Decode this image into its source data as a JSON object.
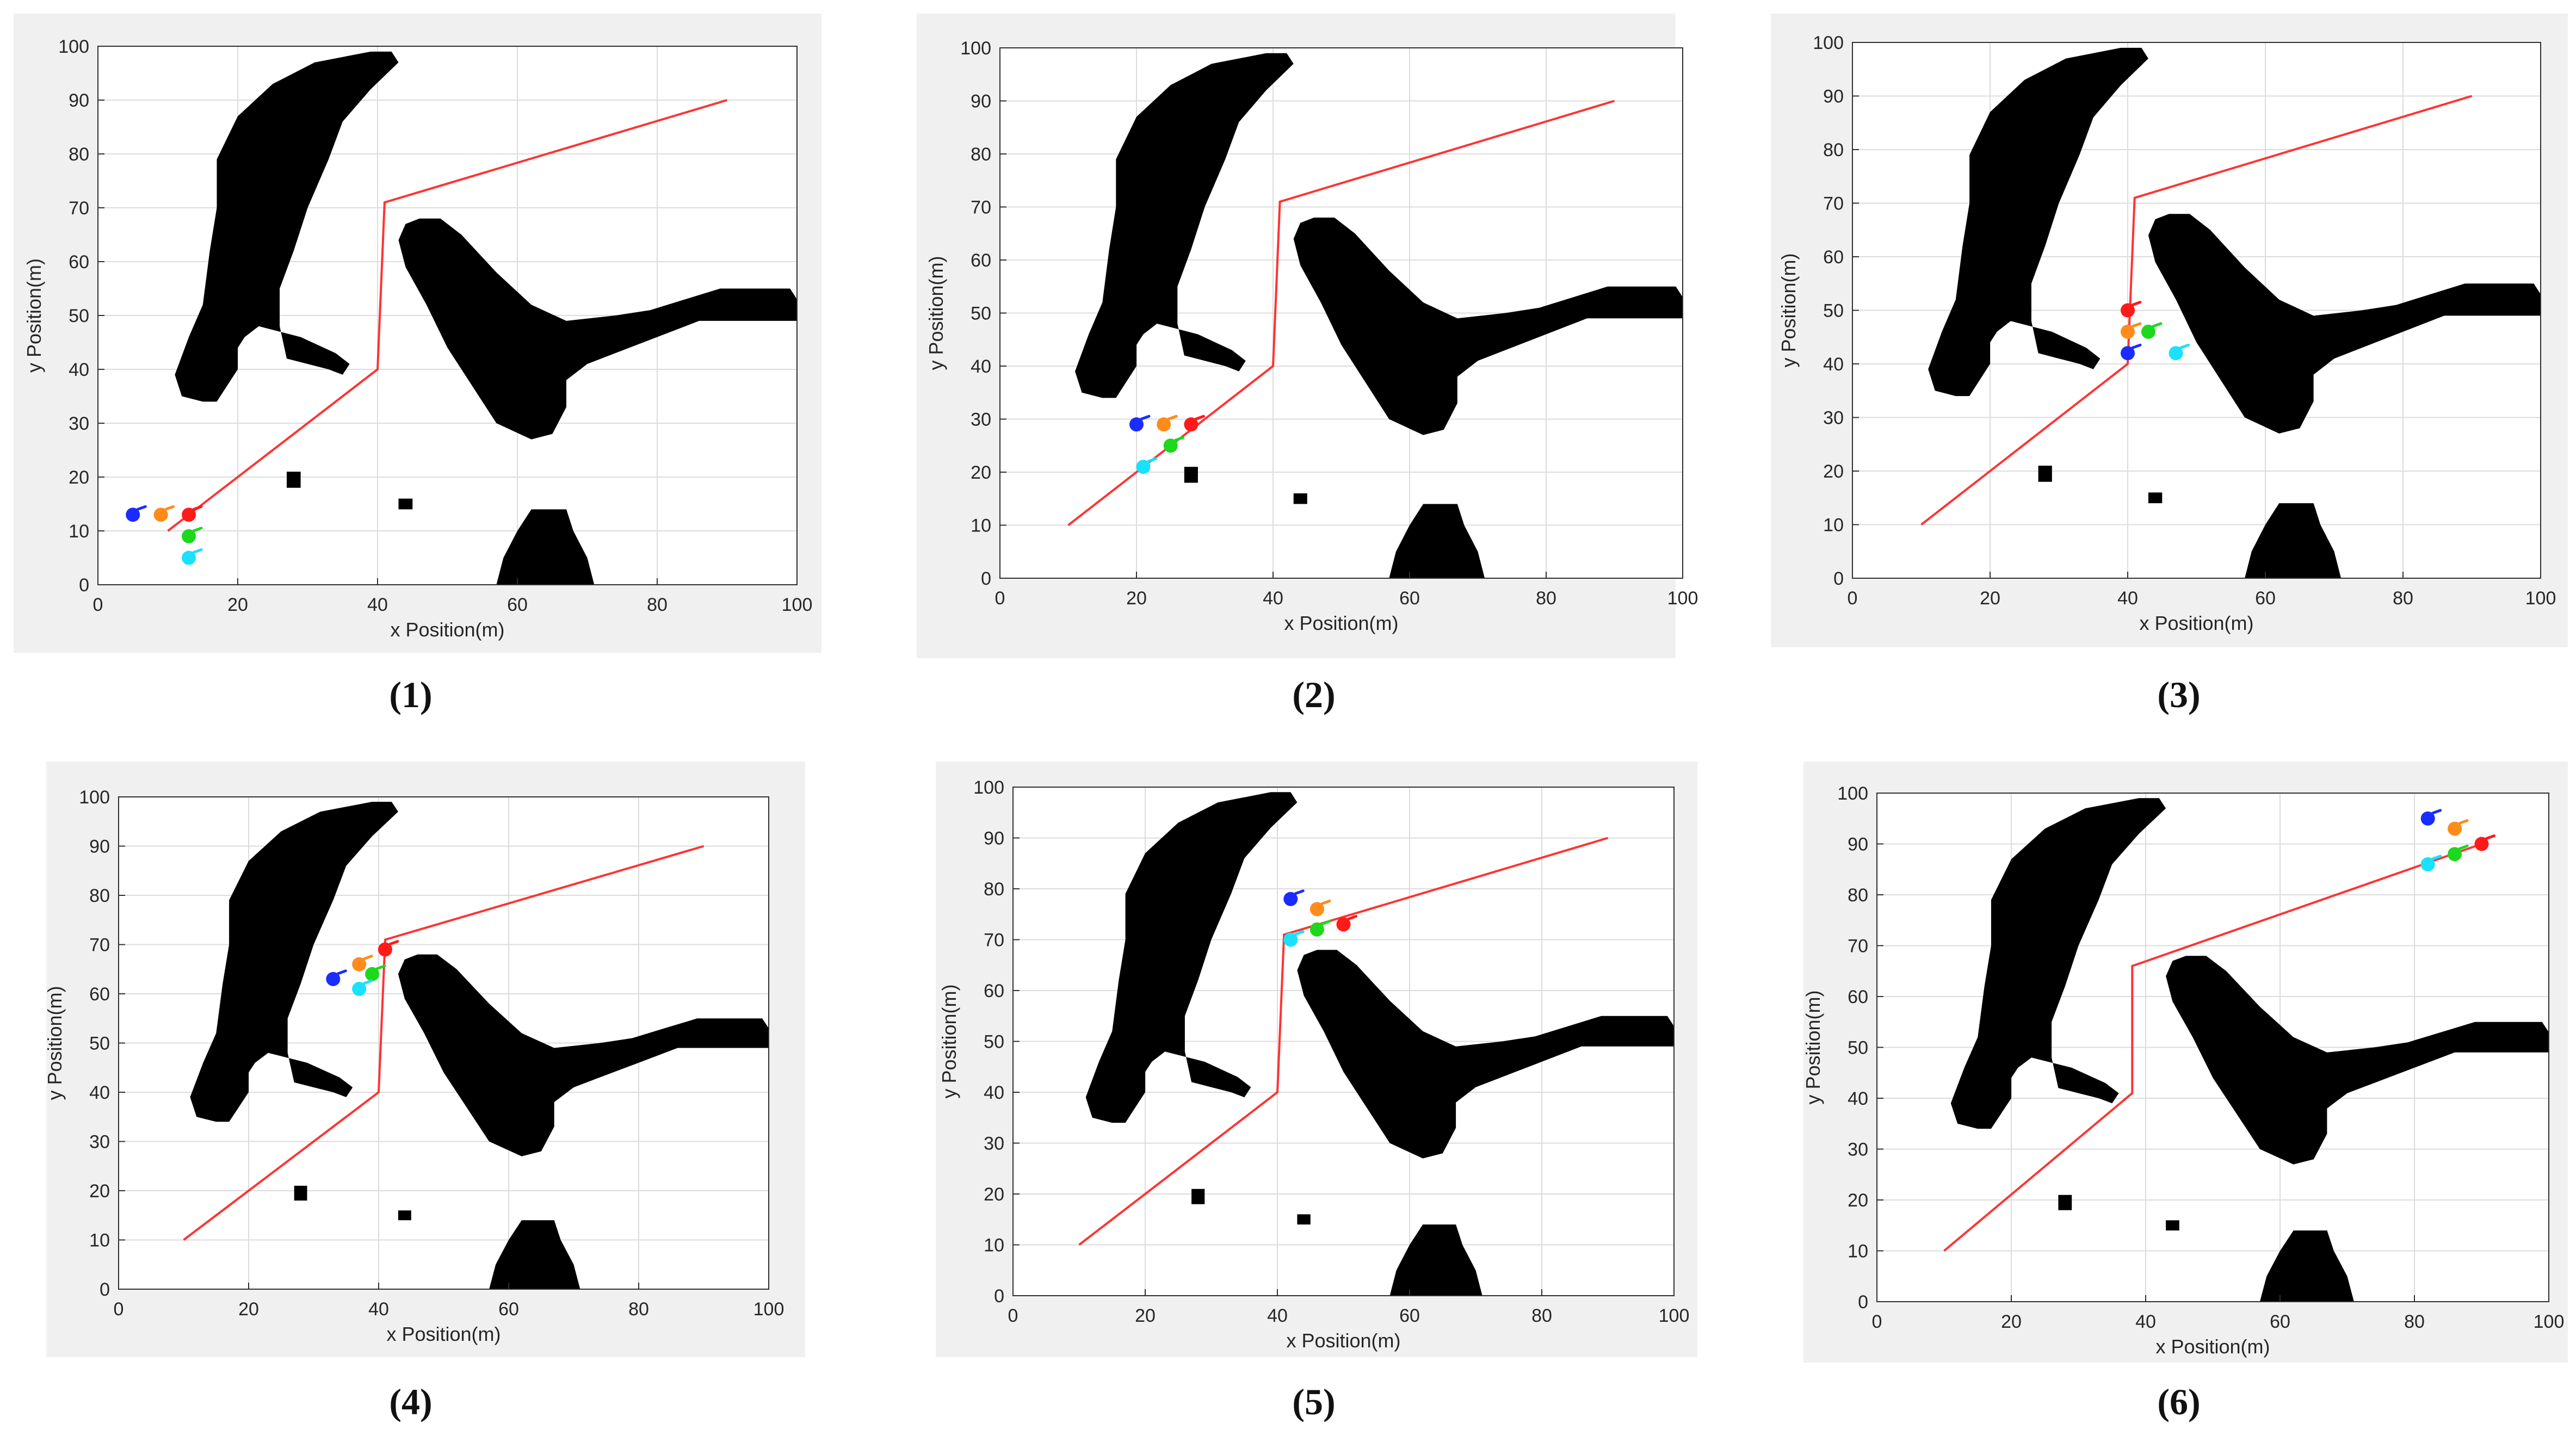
{
  "figure": {
    "colors": {
      "panel_bg": "#f0f0f0",
      "plot_bg": "#ffffff",
      "grid": "#dcdcdc",
      "axis": "#303030",
      "text": "#262626",
      "path": "#ff3333",
      "obstacle": "#000000",
      "robot_blue": "#1a2cff",
      "robot_orange": "#ff8c1a",
      "robot_red": "#ff1a1a",
      "robot_green": "#1ed81e",
      "robot_cyan": "#19e1ff"
    },
    "panel_labels": [
      "(1)",
      "(2)",
      "(3)",
      "(4)",
      "(5)",
      "(6)"
    ]
  },
  "chart_data": [
    {
      "type": "scatter",
      "title": "",
      "xlabel": "x Position(m)",
      "ylabel": "y Position(m)",
      "xlim": [
        0,
        100
      ],
      "ylim": [
        0,
        100
      ],
      "xticks": [
        0,
        20,
        40,
        60,
        80,
        100
      ],
      "yticks": [
        0,
        10,
        20,
        30,
        40,
        50,
        60,
        70,
        80,
        90,
        100
      ],
      "grid": true,
      "path": {
        "x": [
          10,
          40,
          41,
          90
        ],
        "y": [
          10,
          40,
          71,
          90
        ]
      },
      "robots": [
        {
          "color": "blue",
          "x": 5,
          "y": 13
        },
        {
          "color": "orange",
          "x": 9,
          "y": 13
        },
        {
          "color": "red",
          "x": 13,
          "y": 13
        },
        {
          "color": "green",
          "x": 13,
          "y": 9
        },
        {
          "color": "cyan",
          "x": 13,
          "y": 5
        }
      ]
    },
    {
      "type": "scatter",
      "title": "",
      "xlabel": "x Position(m)",
      "ylabel": "y Position(m)",
      "xlim": [
        0,
        100
      ],
      "ylim": [
        0,
        100
      ],
      "xticks": [
        0,
        20,
        40,
        60,
        80,
        100
      ],
      "yticks": [
        0,
        10,
        20,
        30,
        40,
        50,
        60,
        70,
        80,
        90,
        100
      ],
      "grid": true,
      "path": {
        "x": [
          10,
          40,
          41,
          90
        ],
        "y": [
          10,
          40,
          71,
          90
        ]
      },
      "robots": [
        {
          "color": "blue",
          "x": 20,
          "y": 29
        },
        {
          "color": "orange",
          "x": 24,
          "y": 29
        },
        {
          "color": "red",
          "x": 28,
          "y": 29
        },
        {
          "color": "green",
          "x": 25,
          "y": 25
        },
        {
          "color": "cyan",
          "x": 21,
          "y": 21
        }
      ]
    },
    {
      "type": "scatter",
      "title": "",
      "xlabel": "x Position(m)",
      "ylabel": "y Position(m)",
      "xlim": [
        0,
        100
      ],
      "ylim": [
        0,
        100
      ],
      "xticks": [
        0,
        20,
        40,
        60,
        80,
        100
      ],
      "yticks": [
        0,
        10,
        20,
        30,
        40,
        50,
        60,
        70,
        80,
        90,
        100
      ],
      "grid": true,
      "path": {
        "x": [
          10,
          40,
          41,
          90
        ],
        "y": [
          10,
          40,
          71,
          90
        ]
      },
      "robots": [
        {
          "color": "blue",
          "x": 40,
          "y": 42
        },
        {
          "color": "orange",
          "x": 40,
          "y": 46
        },
        {
          "color": "red",
          "x": 40,
          "y": 50
        },
        {
          "color": "green",
          "x": 43,
          "y": 46
        },
        {
          "color": "cyan",
          "x": 47,
          "y": 42
        }
      ]
    },
    {
      "type": "scatter",
      "title": "",
      "xlabel": "x Position(m)",
      "ylabel": "y Position(m)",
      "xlim": [
        0,
        100
      ],
      "ylim": [
        0,
        100
      ],
      "xticks": [
        0,
        20,
        40,
        60,
        80,
        100
      ],
      "yticks": [
        0,
        10,
        20,
        30,
        40,
        50,
        60,
        70,
        80,
        90,
        100
      ],
      "grid": true,
      "path": {
        "x": [
          10,
          40,
          41,
          90
        ],
        "y": [
          10,
          40,
          71,
          90
        ]
      },
      "robots": [
        {
          "color": "blue",
          "x": 33,
          "y": 63
        },
        {
          "color": "orange",
          "x": 37,
          "y": 66
        },
        {
          "color": "red",
          "x": 41,
          "y": 69
        },
        {
          "color": "green",
          "x": 39,
          "y": 64
        },
        {
          "color": "cyan",
          "x": 37,
          "y": 61
        }
      ]
    },
    {
      "type": "scatter",
      "title": "",
      "xlabel": "x Position(m)",
      "ylabel": "y Position(m)",
      "xlim": [
        0,
        100
      ],
      "ylim": [
        0,
        100
      ],
      "xticks": [
        0,
        20,
        40,
        60,
        80,
        100
      ],
      "yticks": [
        0,
        10,
        20,
        30,
        40,
        50,
        60,
        70,
        80,
        90,
        100
      ],
      "grid": true,
      "path": {
        "x": [
          10,
          40,
          41,
          90
        ],
        "y": [
          10,
          40,
          71,
          90
        ]
      },
      "robots": [
        {
          "color": "blue",
          "x": 42,
          "y": 78
        },
        {
          "color": "orange",
          "x": 46,
          "y": 76
        },
        {
          "color": "red",
          "x": 50,
          "y": 73
        },
        {
          "color": "green",
          "x": 46,
          "y": 72
        },
        {
          "color": "cyan",
          "x": 42,
          "y": 70
        }
      ]
    },
    {
      "type": "scatter",
      "title": "",
      "xlabel": "x Position(m)",
      "ylabel": "y Position(m)",
      "xlim": [
        0,
        100
      ],
      "ylim": [
        0,
        100
      ],
      "xticks": [
        0,
        20,
        40,
        60,
        80,
        100
      ],
      "yticks": [
        0,
        10,
        20,
        30,
        40,
        50,
        60,
        70,
        80,
        90,
        100
      ],
      "grid": true,
      "path": {
        "x": [
          10,
          38,
          38,
          90
        ],
        "y": [
          10,
          41,
          66,
          90
        ]
      },
      "robots": [
        {
          "color": "blue",
          "x": 82,
          "y": 95
        },
        {
          "color": "orange",
          "x": 86,
          "y": 93
        },
        {
          "color": "red",
          "x": 90,
          "y": 90
        },
        {
          "color": "green",
          "x": 86,
          "y": 88
        },
        {
          "color": "cyan",
          "x": 82,
          "y": 86
        }
      ]
    }
  ]
}
